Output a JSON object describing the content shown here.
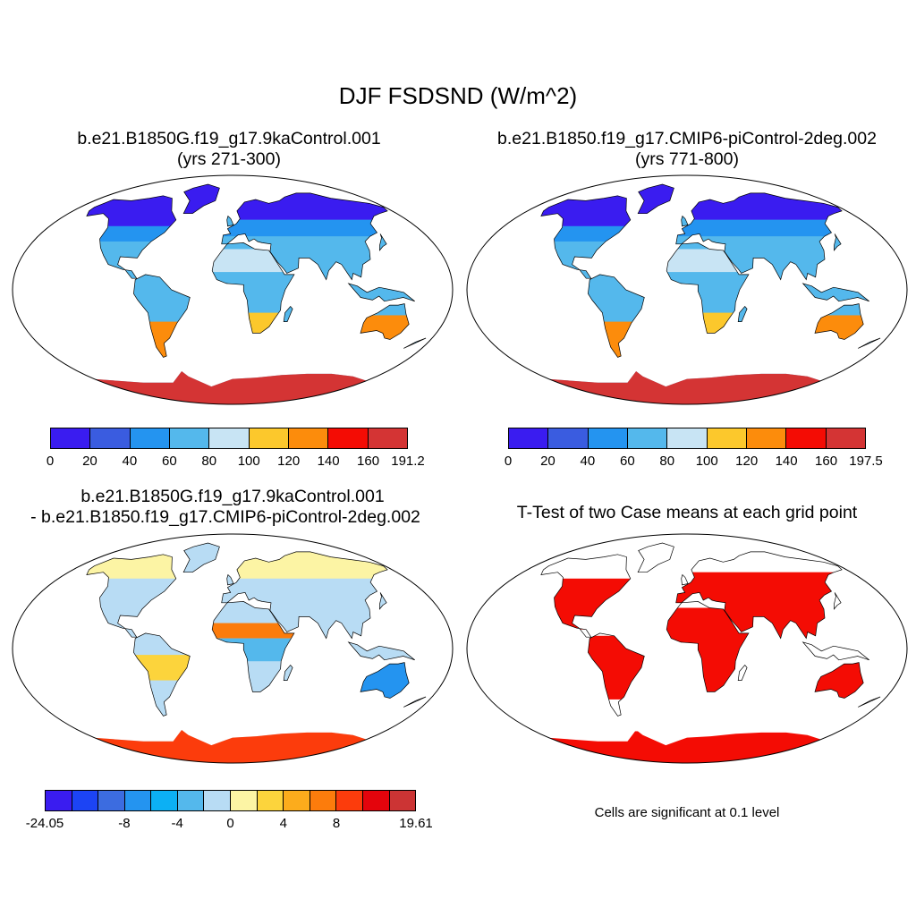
{
  "title": "DJF FSDSND (W/m^2)",
  "panels": {
    "tl": {
      "title_line1": "b.e21.B1850G.f19_g17.9kaControl.001",
      "title_line2": "(yrs 271-300)"
    },
    "tr": {
      "title_line1": "b.e21.B1850.f19_g17.CMIP6-piControl-2deg.002",
      "title_line2": "(yrs 771-800)"
    },
    "bl": {
      "title_line1": "b.e21.B1850G.f19_g17.9kaControl.001",
      "title_line2": "- b.e21.B1850.f19_g17.CMIP6-piControl-2deg.002"
    },
    "br": {
      "title_line1": "T-Test of two Case means at each grid point",
      "note": "Cells are significant at 0.1 level"
    }
  },
  "colorbars": {
    "tl": {
      "colors": [
        "#3a1cf0",
        "#3a5ce0",
        "#2494f0",
        "#54b8ec",
        "#c8e4f4",
        "#fcc82c",
        "#fc8c0c",
        "#f40c04",
        "#d43434"
      ],
      "labels": [
        "0",
        "20",
        "40",
        "60",
        "80",
        "100",
        "120",
        "140",
        "160",
        "191.2"
      ]
    },
    "tr": {
      "colors": [
        "#3a1cf0",
        "#3a5ce0",
        "#2494f0",
        "#54b8ec",
        "#c8e4f4",
        "#fcc82c",
        "#fc8c0c",
        "#f40c04",
        "#d43434"
      ],
      "labels": [
        "0",
        "20",
        "40",
        "60",
        "80",
        "100",
        "120",
        "140",
        "160",
        "197.5"
      ]
    },
    "bl": {
      "colors": [
        "#3a1cf0",
        "#1c44f4",
        "#3c6ce0",
        "#2494f0",
        "#0cb0f4",
        "#54b8ec",
        "#b8dcf4",
        "#fcf4a4",
        "#fcd43c",
        "#fcac1c",
        "#fc7c0c",
        "#fc3c0c",
        "#e4040c",
        "#cc3434"
      ],
      "labels": [
        "-24.05",
        "-8",
        "-4",
        "0",
        "4",
        "8",
        "19.61"
      ]
    }
  },
  "icons": {
    "map_projection": "robinson-world-map"
  }
}
